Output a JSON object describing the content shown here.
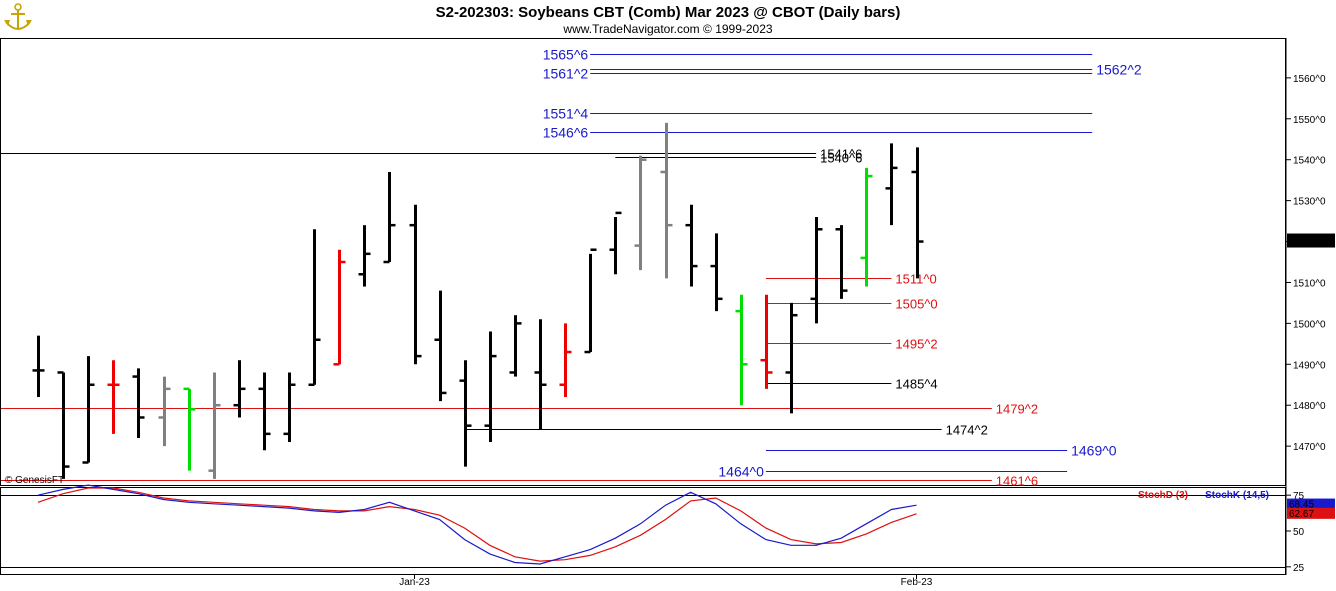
{
  "header": {
    "title": "S2-202303:  Soybeans CBT (Comb) Mar 2023 @ CBOT  (Daily bars)",
    "subtitle": "www.TradeNavigator.com © 1999-2023",
    "watermark": "© GenesisFT",
    "logo_icon": "anchor-logo-icon"
  },
  "colors": {
    "bar_black": "#000000",
    "bar_red": "#ee0000",
    "bar_green": "#00dd00",
    "bar_gray": "#808080",
    "level_blue": "#1a1acc",
    "level_red": "#dd1111",
    "level_black": "#000000",
    "stoch_d": "#dd1111",
    "stoch_k": "#1a1acc"
  },
  "chart_data": {
    "type": "ohlc",
    "instrument": "Soybeans CBT (Comb) Mar 2023",
    "price_axis": {
      "ticks": [
        "1470^0",
        "1480^0",
        "1490^0",
        "1500^0",
        "1510^0",
        "1520^0",
        "1530^0",
        "1540^0",
        "1550^0",
        "1560^0"
      ],
      "tick_values": [
        1470,
        1480,
        1490,
        1500,
        1510,
        1520,
        1530,
        1540,
        1550,
        1560
      ],
      "ylim": [
        1460.5,
        1569.5
      ]
    },
    "last_price": {
      "label": "1520^2",
      "value": 1520.25
    },
    "x_ticks": [
      {
        "label": "Jan-23",
        "bar": 15
      },
      {
        "label": "Feb-23",
        "bar": 35
      }
    ],
    "bars": [
      {
        "o": 1488.5,
        "h": 1497,
        "l": 1482,
        "c": 1488.5,
        "color": "black"
      },
      {
        "o": 1488,
        "h": 1488,
        "l": 1462,
        "c": 1465,
        "color": "black"
      },
      {
        "o": 1466,
        "h": 1492,
        "l": 1466,
        "c": 1485,
        "color": "black"
      },
      {
        "o": 1485,
        "h": 1491,
        "l": 1473,
        "c": 1485,
        "color": "red"
      },
      {
        "o": 1487,
        "h": 1489,
        "l": 1472,
        "c": 1477,
        "color": "black"
      },
      {
        "o": 1477,
        "h": 1487,
        "l": 1470,
        "c": 1484,
        "color": "gray"
      },
      {
        "o": 1484,
        "h": 1484,
        "l": 1464,
        "c": 1479,
        "color": "green"
      },
      {
        "o": 1464,
        "h": 1488,
        "l": 1462,
        "c": 1480,
        "color": "gray"
      },
      {
        "o": 1480,
        "h": 1491,
        "l": 1477,
        "c": 1484,
        "color": "black"
      },
      {
        "o": 1484,
        "h": 1488,
        "l": 1469,
        "c": 1473,
        "color": "black"
      },
      {
        "o": 1473,
        "h": 1488,
        "l": 1471,
        "c": 1485,
        "color": "black"
      },
      {
        "o": 1485,
        "h": 1523,
        "l": 1485,
        "c": 1496,
        "color": "black"
      },
      {
        "o": 1490,
        "h": 1518,
        "l": 1490,
        "c": 1515,
        "color": "red"
      },
      {
        "o": 1512,
        "h": 1524,
        "l": 1509,
        "c": 1517,
        "color": "black"
      },
      {
        "o": 1515,
        "h": 1537,
        "l": 1515,
        "c": 1524,
        "color": "black"
      },
      {
        "o": 1524,
        "h": 1529,
        "l": 1490,
        "c": 1492,
        "color": "black"
      },
      {
        "o": 1496,
        "h": 1508,
        "l": 1481,
        "c": 1483,
        "color": "black"
      },
      {
        "o": 1486,
        "h": 1491,
        "l": 1465,
        "c": 1475,
        "color": "black"
      },
      {
        "o": 1475,
        "h": 1498,
        "l": 1471,
        "c": 1492,
        "color": "black"
      },
      {
        "o": 1488,
        "h": 1502,
        "l": 1487,
        "c": 1500,
        "color": "black"
      },
      {
        "o": 1488,
        "h": 1501,
        "l": 1474,
        "c": 1485,
        "color": "black"
      },
      {
        "o": 1485,
        "h": 1500,
        "l": 1482,
        "c": 1493,
        "color": "red"
      },
      {
        "o": 1493,
        "h": 1517,
        "l": 1493,
        "c": 1518,
        "color": "black"
      },
      {
        "o": 1518,
        "h": 1526,
        "l": 1512,
        "c": 1527,
        "color": "black"
      },
      {
        "o": 1519,
        "h": 1541,
        "l": 1513,
        "c": 1540,
        "color": "gray"
      },
      {
        "o": 1537,
        "h": 1549,
        "l": 1511,
        "c": 1524,
        "color": "gray"
      },
      {
        "o": 1524,
        "h": 1529,
        "l": 1509,
        "c": 1514,
        "color": "black"
      },
      {
        "o": 1514,
        "h": 1522,
        "l": 1503,
        "c": 1506,
        "color": "black"
      },
      {
        "o": 1503,
        "h": 1507,
        "l": 1480,
        "c": 1490,
        "color": "green"
      },
      {
        "o": 1491,
        "h": 1507,
        "l": 1484,
        "c": 1488,
        "color": "red"
      },
      {
        "o": 1488,
        "h": 1505,
        "l": 1478,
        "c": 1502,
        "color": "black"
      },
      {
        "o": 1506,
        "h": 1526,
        "l": 1500,
        "c": 1523,
        "color": "black"
      },
      {
        "o": 1523,
        "h": 1524,
        "l": 1506,
        "c": 1508,
        "color": "black"
      },
      {
        "o": 1516,
        "h": 1538,
        "l": 1509,
        "c": 1536,
        "color": "green"
      },
      {
        "o": 1533,
        "h": 1544,
        "l": 1524,
        "c": 1538,
        "color": "black"
      },
      {
        "o": 1537,
        "h": 1543,
        "l": 1511,
        "c": 1520,
        "color": "black"
      }
    ],
    "levels": [
      {
        "label": "1565^6",
        "value": 1565.75,
        "color": "blue",
        "from_bar": 22,
        "to_bar": 42,
        "label_side": "left",
        "size": "big"
      },
      {
        "label": "1562^2",
        "value": 1562.25,
        "color": "blue",
        "from_bar": 22,
        "to_bar": 42,
        "label_side": "right",
        "size": "big"
      },
      {
        "label": "1561^2",
        "value": 1561.25,
        "color": "blue",
        "from_bar": 22,
        "to_bar": 42,
        "label_side": "left",
        "size": "big"
      },
      {
        "label": "1551^4",
        "value": 1551.5,
        "color": "blue",
        "from_bar": 22,
        "to_bar": 42,
        "label_side": "left",
        "size": "big"
      },
      {
        "label": "1546^6",
        "value": 1546.75,
        "color": "blue",
        "from_bar": 22,
        "to_bar": 42,
        "label_side": "left",
        "size": "big"
      },
      {
        "label": "1541^6",
        "value": 1541.75,
        "color": "black",
        "from_bar": -1,
        "to_bar": 31,
        "label_side": "right",
        "size": "small"
      },
      {
        "label": "1540^6",
        "value": 1540.75,
        "color": "black",
        "from_bar": 23,
        "to_bar": 31,
        "label_side": "right",
        "size": "small"
      },
      {
        "label": "1511^0",
        "value": 1511.0,
        "color": "red",
        "from_bar": 29,
        "to_bar": 34,
        "label_side": "right",
        "size": "small"
      },
      {
        "label": "1505^0",
        "value": 1505.0,
        "color": "red",
        "from_bar": 29,
        "to_bar": 34,
        "label_side": "right",
        "size": "small"
      },
      {
        "label": "1495^2",
        "value": 1495.25,
        "color": "red",
        "from_bar": 29,
        "to_bar": 34,
        "label_side": "right",
        "size": "small"
      },
      {
        "label": "1485^4",
        "value": 1485.5,
        "color": "black",
        "from_bar": 29,
        "to_bar": 34,
        "label_side": "right",
        "size": "small"
      },
      {
        "label": "1479^2",
        "value": 1479.25,
        "color": "red",
        "from_bar": -1,
        "to_bar": 38,
        "label_side": "right",
        "size": "small"
      },
      {
        "label": "1474^2",
        "value": 1474.25,
        "color": "black",
        "from_bar": 17,
        "to_bar": 36,
        "label_side": "right",
        "size": "small"
      },
      {
        "label": "1469^0",
        "value": 1469.0,
        "color": "blue",
        "from_bar": 29,
        "to_bar": 41,
        "label_side": "right",
        "size": "big"
      },
      {
        "label": "1464^0",
        "value": 1464.0,
        "color": "blue",
        "from_bar": 29,
        "to_bar": 41,
        "label_side": "left",
        "size": "big"
      },
      {
        "label": "1461^6",
        "value": 1461.75,
        "color": "red",
        "from_bar": -1,
        "to_bar": 38,
        "label_side": "right",
        "size": "small"
      }
    ],
    "oscillator": {
      "legend_d": "StochD (3)",
      "legend_k": "StochK (14,5)",
      "ticks": [
        "75",
        "50",
        "25"
      ],
      "tick_values": [
        75,
        50,
        25
      ],
      "ylim": [
        20,
        80
      ],
      "k_last": "68.45",
      "d_last": "62.67",
      "stoch_k": [
        75,
        79,
        82,
        79,
        76,
        72,
        70,
        69,
        68,
        67,
        66,
        64,
        63,
        65,
        70,
        64,
        58,
        44,
        34,
        28,
        27,
        32,
        37,
        45,
        55,
        68,
        77,
        69,
        55,
        44,
        40,
        40,
        45,
        55,
        65,
        68
      ],
      "stoch_d": [
        70,
        76,
        80,
        80,
        77,
        73,
        71,
        70,
        69,
        68,
        67,
        65,
        64,
        64,
        67,
        65,
        61,
        52,
        40,
        32,
        29,
        30,
        33,
        39,
        47,
        58,
        71,
        73,
        64,
        52,
        44,
        41,
        42,
        48,
        56,
        62
      ]
    }
  }
}
